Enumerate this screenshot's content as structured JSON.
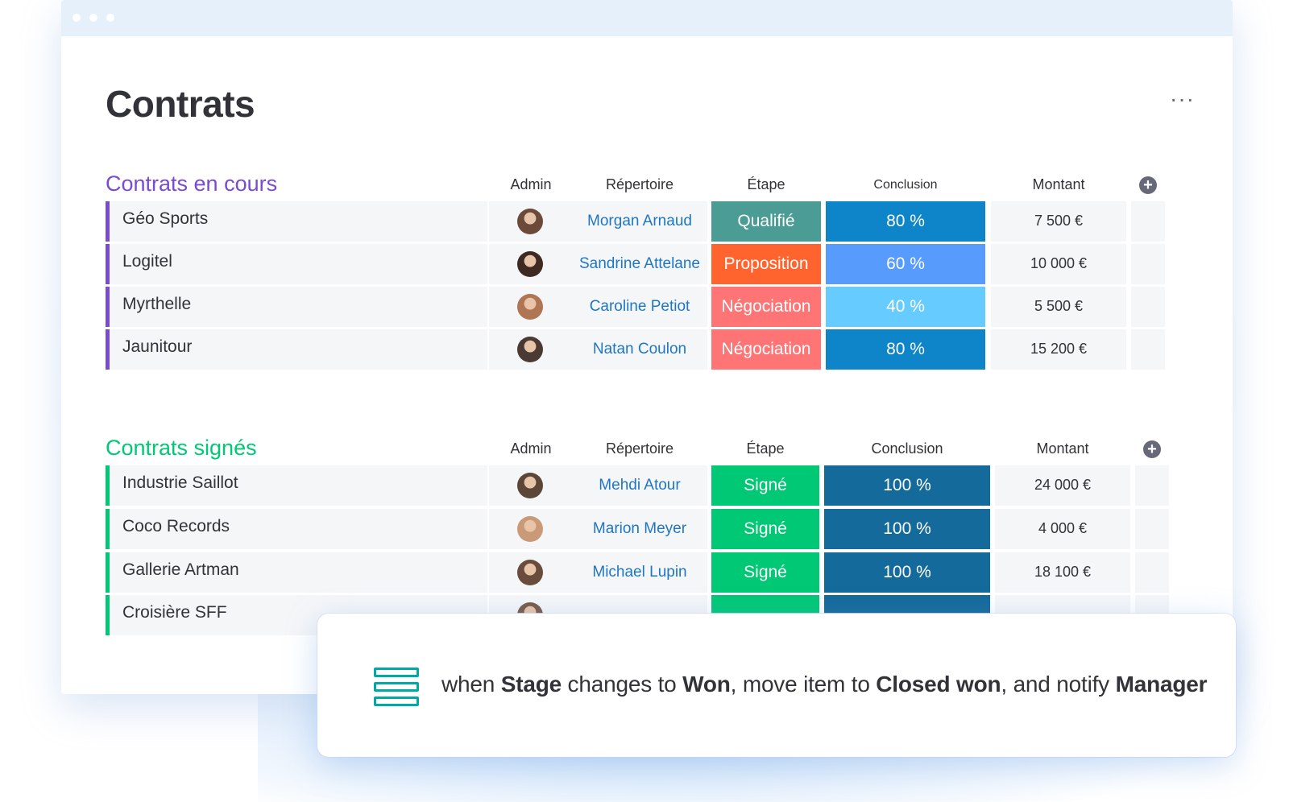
{
  "page_title": "Contrats",
  "more_label": "···",
  "groups": [
    {
      "title": "Contrats en cours",
      "color": "#784bd1",
      "headers": {
        "admin": "Admin",
        "repertoire": "Répertoire",
        "etape": "Étape",
        "conclusion": "Conclusion",
        "montant": "Montant"
      },
      "rows": [
        {
          "name": "Géo Sports",
          "avatar_color": "#6b4a3a",
          "contact": "Morgan Arnaud",
          "stage": "Qualifié",
          "stage_color": "#4a9c94",
          "conclusion": "80 %",
          "conclusion_color": "#0d85c8",
          "amount": "7 500 €"
        },
        {
          "name": "Logitel",
          "avatar_color": "#3f2a22",
          "contact": "Sandrine Attelane",
          "stage": "Proposition",
          "stage_color": "#ff642e",
          "conclusion": "60 %",
          "conclusion_color": "#579bfc",
          "amount": "10 000 €"
        },
        {
          "name": "Myrthelle",
          "avatar_color": "#b07552",
          "contact": "Caroline Petiot",
          "stage": "Négociation",
          "stage_color": "#ff7575",
          "conclusion": "40 %",
          "conclusion_color": "#66ccff",
          "amount": "5 500 €"
        },
        {
          "name": "Jaunitour",
          "avatar_color": "#4a3a33",
          "contact": "Natan Coulon",
          "stage": "Négociation",
          "stage_color": "#ff7575",
          "conclusion": "80 %",
          "conclusion_color": "#0d85c8",
          "amount": "15 200 €"
        }
      ]
    },
    {
      "title": "Contrats signés",
      "color": "#00c875",
      "headers": {
        "admin": "Admin",
        "repertoire": "Répertoire",
        "etape": "Étape",
        "conclusion": "Conclusion",
        "montant": "Montant"
      },
      "rows": [
        {
          "name": "Industrie Saillot",
          "avatar_color": "#5b4638",
          "contact": "Mehdi Atour",
          "stage": "Signé",
          "stage_color": "#00c875",
          "conclusion": "100 %",
          "conclusion_color": "#146a9a",
          "amount": "24 000 €"
        },
        {
          "name": "Coco Records",
          "avatar_color": "#c99a78",
          "contact": "Marion Meyer",
          "stage": "Signé",
          "stage_color": "#00c875",
          "conclusion": "100 %",
          "conclusion_color": "#146a9a",
          "amount": "4 000 €"
        },
        {
          "name": "Gallerie Artman",
          "avatar_color": "#6a4c3c",
          "contact": "Michael Lupin",
          "stage": "Signé",
          "stage_color": "#00c875",
          "conclusion": "100 %",
          "conclusion_color": "#146a9a",
          "amount": "18 100 €"
        },
        {
          "name": "Croisière SFF",
          "avatar_color": "#7a5a48",
          "contact": "",
          "stage": "",
          "stage_color": "#00c875",
          "conclusion": "",
          "conclusion_color": "#146a9a",
          "amount": ""
        }
      ]
    }
  ],
  "automation": {
    "icon": "table-rows-icon",
    "p1": "when ",
    "b1": "Stage",
    "p2": " changes to ",
    "b2": "Won",
    "p3": ", move item to ",
    "b3": "Closed won",
    "p4": ", and notify ",
    "b4": "Manager"
  }
}
